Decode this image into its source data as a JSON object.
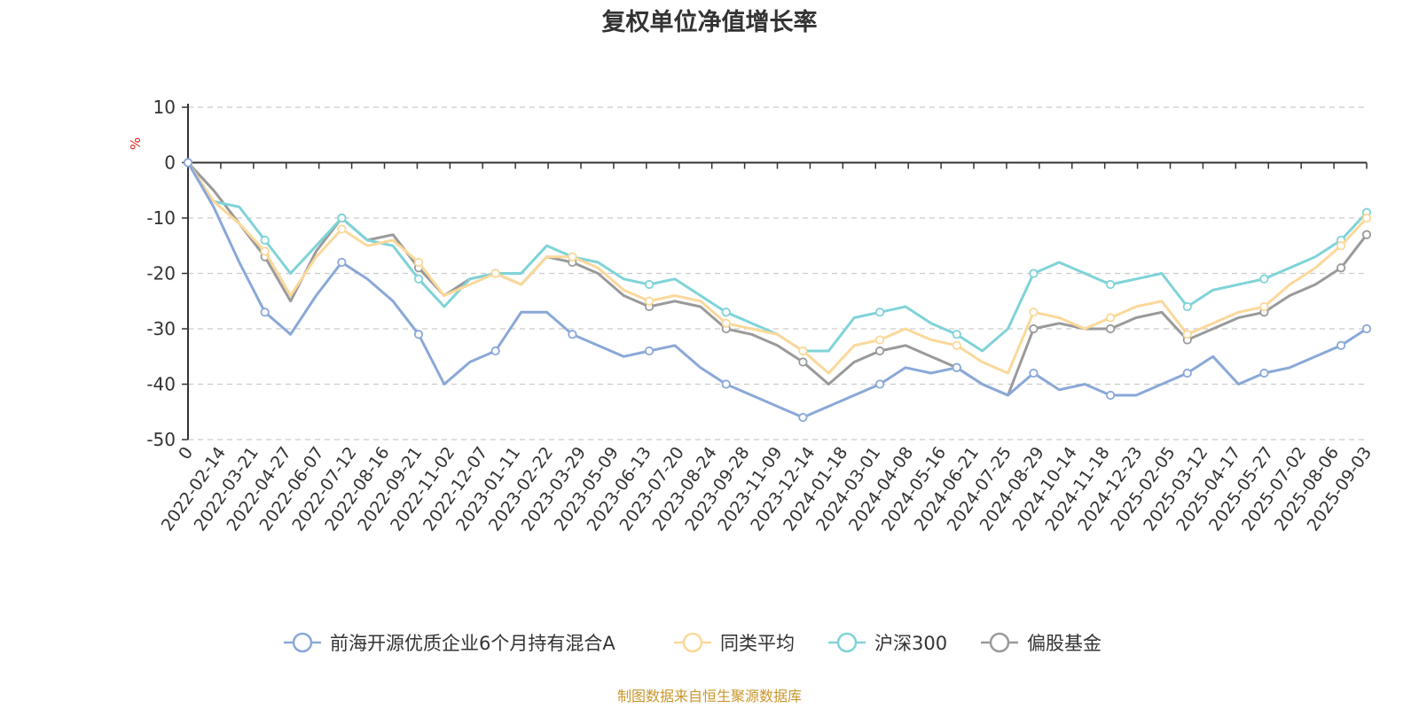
{
  "chart_data": {
    "type": "line",
    "title": "复权单位净值增长率",
    "ylabel": "%",
    "ylim": [
      -50,
      10
    ],
    "yticks": [
      10,
      0,
      -10,
      -20,
      -30,
      -40,
      -50
    ],
    "grid": true,
    "legend_position": "bottom-center",
    "x_labels": [
      "0",
      "2022-02-14",
      "2022-03-21",
      "2022-04-27",
      "2022-06-07",
      "2022-07-12",
      "2022-08-16",
      "2022-09-21",
      "2022-11-02",
      "2022-12-07",
      "2023-01-11",
      "2023-02-22",
      "2023-03-29",
      "2023-05-09",
      "2023-06-13",
      "2023-07-20",
      "2023-08-24",
      "2023-09-28",
      "2023-11-09",
      "2023-12-14",
      "2024-01-18",
      "2024-03-01",
      "2024-04-08",
      "2024-05-16",
      "2024-06-21",
      "2024-07-25",
      "2024-08-29",
      "2024-10-14",
      "2024-11-18",
      "2024-12-23",
      "2025-02-05",
      "2025-03-12",
      "2025-04-17",
      "2025-05-27",
      "2025-07-02",
      "2025-08-06",
      "2025-09-03"
    ],
    "series": [
      {
        "name": "前海开源优质企业6个月持有混合A",
        "color": "#8aa8d8",
        "values": [
          0,
          -8,
          -18,
          -27,
          -31,
          -24,
          -18,
          -21,
          -25,
          -31,
          -40,
          -36,
          -34,
          -27,
          -27,
          -31,
          -33,
          -35,
          -34,
          -33,
          -37,
          -40,
          -42,
          -44,
          -46,
          -44,
          -42,
          -40,
          -37,
          -38,
          -37,
          -40,
          -42,
          -38,
          -41,
          -40,
          -42,
          -42,
          -40,
          -38,
          -35,
          -40,
          -38,
          -37,
          -35,
          -33,
          -30
        ]
      },
      {
        "name": "同类平均",
        "color": "#fbd89a",
        "values": [
          0,
          -7,
          -11,
          -16,
          -24,
          -17,
          -12,
          -15,
          -14,
          -18,
          -24,
          -22,
          -20,
          -22,
          -17,
          -17,
          -19,
          -23,
          -25,
          -24,
          -25,
          -29,
          -30,
          -31,
          -34,
          -38,
          -33,
          -32,
          -30,
          -32,
          -33,
          -36,
          -38,
          -27,
          -28,
          -30,
          -28,
          -26,
          -25,
          -31,
          -29,
          -27,
          -26,
          -22,
          -19,
          -15,
          -10
        ]
      },
      {
        "name": "沪深300",
        "color": "#7fd3d8",
        "values": [
          0,
          -7,
          -8,
          -14,
          -20,
          -15,
          -10,
          -14,
          -15,
          -21,
          -26,
          -21,
          -20,
          -20,
          -15,
          -17,
          -18,
          -21,
          -22,
          -21,
          -24,
          -27,
          -29,
          -31,
          -34,
          -34,
          -28,
          -27,
          -26,
          -29,
          -31,
          -34,
          -30,
          -20,
          -18,
          -20,
          -22,
          -21,
          -20,
          -26,
          -23,
          -22,
          -21,
          -19,
          -17,
          -14,
          -9
        ]
      },
      {
        "name": "偏股基金",
        "color": "#9a9a9a",
        "values": [
          0,
          -5,
          -11,
          -17,
          -25,
          -16,
          -10,
          -14,
          -13,
          -19,
          -24,
          -21,
          -20,
          -22,
          -17,
          -18,
          -20,
          -24,
          -26,
          -25,
          -26,
          -30,
          -31,
          -33,
          -36,
          -40,
          -36,
          -34,
          -33,
          -35,
          -37,
          -40,
          -42,
          -30,
          -29,
          -30,
          -30,
          -28,
          -27,
          -32,
          -30,
          -28,
          -27,
          -24,
          -22,
          -19,
          -13
        ]
      }
    ]
  },
  "source_text": "制图数据来自恒生聚源数据库"
}
